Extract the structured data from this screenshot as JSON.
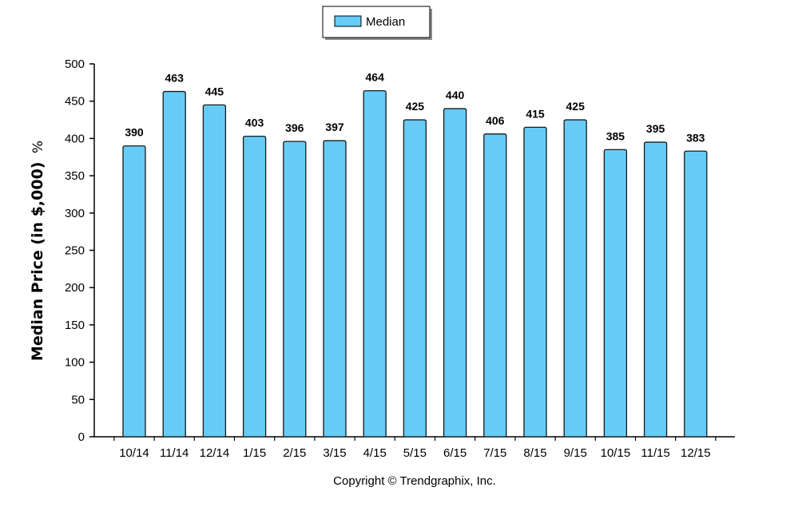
{
  "chart_data": {
    "type": "bar",
    "categories": [
      "10/14",
      "11/14",
      "12/14",
      "1/15",
      "2/15",
      "3/15",
      "4/15",
      "5/15",
      "6/15",
      "7/15",
      "8/15",
      "9/15",
      "10/15",
      "11/15",
      "12/15"
    ],
    "series": [
      {
        "name": "Median",
        "values": [
          390,
          463,
          445,
          403,
          396,
          397,
          464,
          425,
          440,
          406,
          415,
          425,
          385,
          395,
          383
        ]
      }
    ],
    "ylabel": "Median Price (in $,000)",
    "ylabel_suffix": "%",
    "xlabel": "",
    "ylim": [
      0,
      500
    ],
    "yticks": [
      0,
      50,
      100,
      150,
      200,
      250,
      300,
      350,
      400,
      450,
      500
    ],
    "legend_position": "top-center",
    "grid": false,
    "colors": {
      "bar_fill": "#66ccf5",
      "bar_stroke": "#1a1a1a",
      "axis": "#000000"
    }
  },
  "footer": {
    "copyright": "Copyright © Trendgraphix, Inc."
  }
}
